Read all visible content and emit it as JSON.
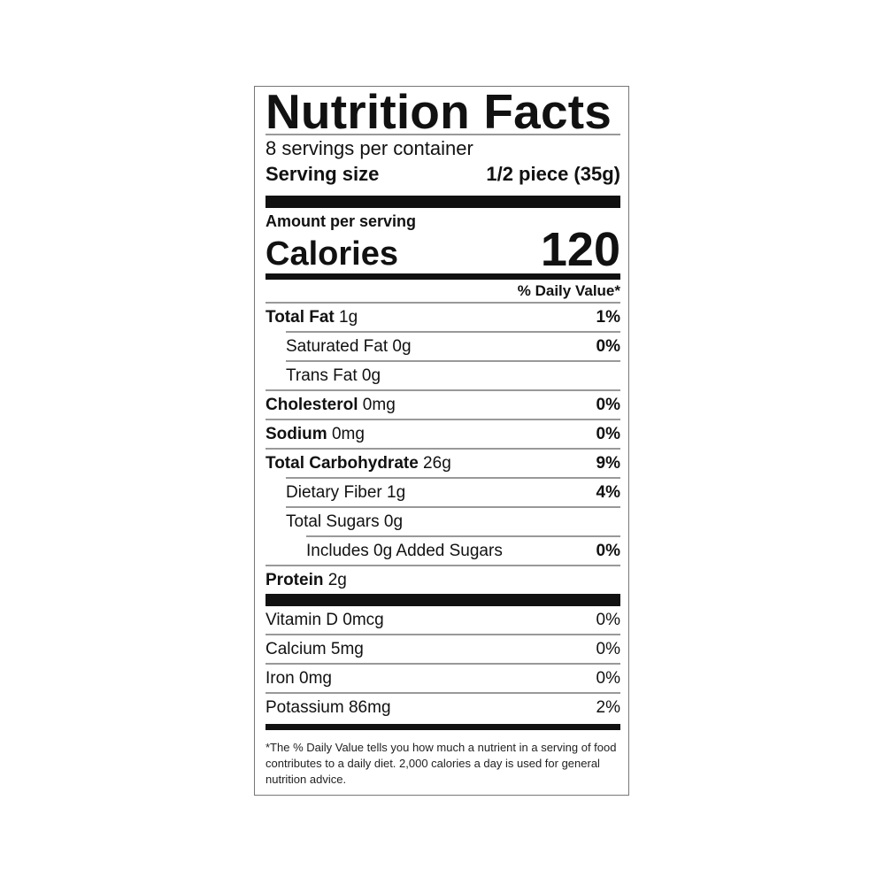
{
  "title": "Nutrition Facts",
  "servings_per_container": "8 servings per container",
  "serving_size": {
    "label": "Serving size",
    "value": "1/2 piece (35g)"
  },
  "amount_per_serving": "Amount per serving",
  "calories": {
    "label": "Calories",
    "value": "120"
  },
  "daily_value_header": "% Daily Value*",
  "nutrients": [
    {
      "name": "Total Fat",
      "amount": " 1g",
      "dv": "1%",
      "indent": 0,
      "bold": true
    },
    {
      "name": "Saturated Fat 0g",
      "amount": "",
      "dv": "0%",
      "indent": 1,
      "bold": false
    },
    {
      "name": "Trans Fat 0g",
      "amount": "",
      "dv": "",
      "indent": 1,
      "bold": false
    },
    {
      "name": "Cholesterol",
      "amount": " 0mg",
      "dv": "0%",
      "indent": 0,
      "bold": true
    },
    {
      "name": "Sodium",
      "amount": " 0mg",
      "dv": "0%",
      "indent": 0,
      "bold": true
    },
    {
      "name": "Total Carbohydrate",
      "amount": " 26g",
      "dv": "9%",
      "indent": 0,
      "bold": true
    },
    {
      "name": "Dietary Fiber 1g",
      "amount": "",
      "dv": "4%",
      "indent": 1,
      "bold": false
    },
    {
      "name": "Total Sugars 0g",
      "amount": "",
      "dv": "",
      "indent": 1,
      "bold": false
    },
    {
      "name": "Includes 0g Added Sugars",
      "amount": "",
      "dv": "0%",
      "indent": 2,
      "bold": false
    },
    {
      "name": "Protein",
      "amount": " 2g",
      "dv": "",
      "indent": 0,
      "bold": true
    }
  ],
  "minerals": [
    {
      "name": "Vitamin D 0mcg",
      "dv": "0%"
    },
    {
      "name": "Calcium 5mg",
      "dv": "0%"
    },
    {
      "name": "Iron 0mg",
      "dv": "0%"
    },
    {
      "name": "Potassium 86mg",
      "dv": "2%"
    }
  ],
  "footnote": "*The % Daily Value tells you how much a nutrient in a serving of food contributes to a daily diet. 2,000 calories a day is used for general nutrition advice."
}
